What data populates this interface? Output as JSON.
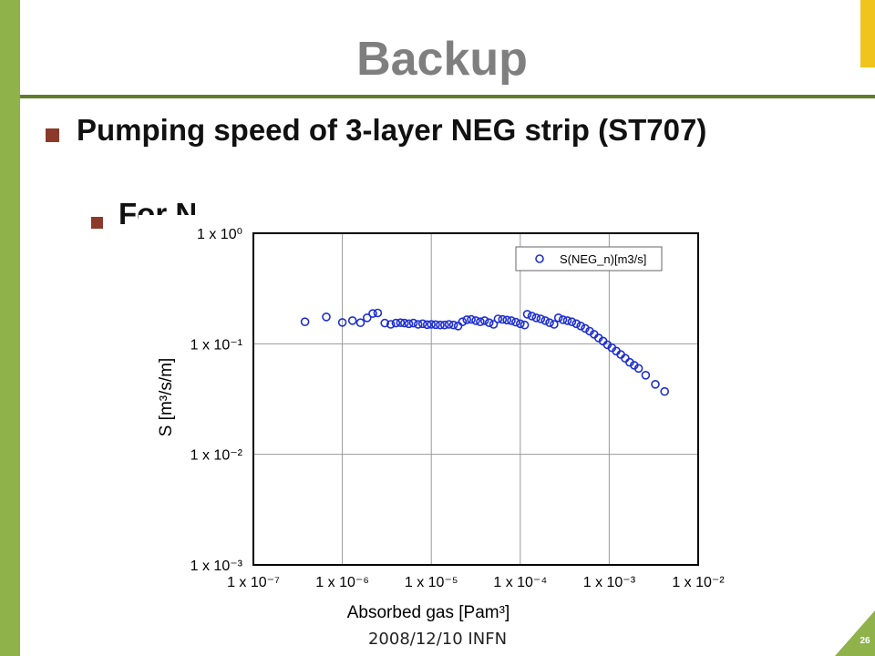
{
  "slide": {
    "title": "Backup",
    "bullet1": "Pumping speed of 3-layer NEG strip (ST707)",
    "bullet2": "For N",
    "footer": "2008/12/10 INFN",
    "page_number": "26"
  },
  "colors": {
    "left_bar": "#8fb24a",
    "accent_yellow": "#f0c41c",
    "bullet": "#8b3a2a",
    "title": "#7f7f7f",
    "series": "#1f2fd0"
  },
  "chart_data": {
    "type": "scatter",
    "xscale": "log",
    "yscale": "log",
    "xlim": [
      1e-07,
      0.01
    ],
    "ylim": [
      0.001,
      1
    ],
    "grid": true,
    "legend_position": "top-right",
    "xlabel": "Absorbed gas [Pam³]",
    "ylabel": "S [m³/s/m]",
    "x_ticks": [
      "1 x 10⁻⁷",
      "1 x 10⁻⁶",
      "1 x 10⁻⁵",
      "1 x 10⁻⁴",
      "1 x 10⁻³",
      "1 x 10⁻²"
    ],
    "y_ticks": [
      "1 x 10⁰",
      "1 x 10⁻¹",
      "1 x 10⁻²",
      "1 x 10⁻³"
    ],
    "series": [
      {
        "name": "S(NEG_n)[m3/s]",
        "points": [
          [
            3.8e-07,
            0.158
          ],
          [
            6.6e-07,
            0.175
          ],
          [
            1e-06,
            0.156
          ],
          [
            1.3e-06,
            0.162
          ],
          [
            1.6e-06,
            0.155
          ],
          [
            1.9e-06,
            0.172
          ],
          [
            2.2e-06,
            0.188
          ],
          [
            2.5e-06,
            0.19
          ],
          [
            3e-06,
            0.154
          ],
          [
            3.5e-06,
            0.15
          ],
          [
            4e-06,
            0.154
          ],
          [
            4.5e-06,
            0.155
          ],
          [
            5e-06,
            0.154
          ],
          [
            5.6e-06,
            0.152
          ],
          [
            6.3e-06,
            0.154
          ],
          [
            7.1e-06,
            0.15
          ],
          [
            8e-06,
            0.152
          ],
          [
            9e-06,
            0.149
          ],
          [
            1e-05,
            0.15
          ],
          [
            1.12e-05,
            0.149
          ],
          [
            1.26e-05,
            0.148
          ],
          [
            1.41e-05,
            0.148
          ],
          [
            1.58e-05,
            0.15
          ],
          [
            1.78e-05,
            0.148
          ],
          [
            2e-05,
            0.145
          ],
          [
            2.24e-05,
            0.158
          ],
          [
            2.51e-05,
            0.165
          ],
          [
            2.82e-05,
            0.166
          ],
          [
            3.16e-05,
            0.162
          ],
          [
            3.55e-05,
            0.158
          ],
          [
            3.98e-05,
            0.162
          ],
          [
            4.47e-05,
            0.155
          ],
          [
            5.01e-05,
            0.15
          ],
          [
            5.62e-05,
            0.168
          ],
          [
            6.31e-05,
            0.166
          ],
          [
            7.08e-05,
            0.164
          ],
          [
            7.94e-05,
            0.162
          ],
          [
            8.91e-05,
            0.157
          ],
          [
            0.0001,
            0.152
          ],
          [
            0.000112,
            0.148
          ],
          [
            0.00012,
            0.185
          ],
          [
            0.000135,
            0.178
          ],
          [
            0.000151,
            0.172
          ],
          [
            0.00017,
            0.168
          ],
          [
            0.000191,
            0.162
          ],
          [
            0.000214,
            0.155
          ],
          [
            0.00024,
            0.15
          ],
          [
            0.000269,
            0.172
          ],
          [
            0.000302,
            0.165
          ],
          [
            0.000339,
            0.162
          ],
          [
            0.00038,
            0.158
          ],
          [
            0.000427,
            0.152
          ],
          [
            0.000479,
            0.145
          ],
          [
            0.000537,
            0.138
          ],
          [
            0.000603,
            0.13
          ],
          [
            0.000676,
            0.122
          ],
          [
            0.000759,
            0.113
          ],
          [
            0.000851,
            0.106
          ],
          [
            0.000955,
            0.098
          ],
          [
            0.00107,
            0.092
          ],
          [
            0.0012,
            0.086
          ],
          [
            0.00135,
            0.08
          ],
          [
            0.00151,
            0.074
          ],
          [
            0.0017,
            0.068
          ],
          [
            0.00191,
            0.064
          ],
          [
            0.00214,
            0.06
          ],
          [
            0.00257,
            0.052
          ],
          [
            0.0033,
            0.043
          ],
          [
            0.0042,
            0.037
          ]
        ]
      }
    ]
  }
}
